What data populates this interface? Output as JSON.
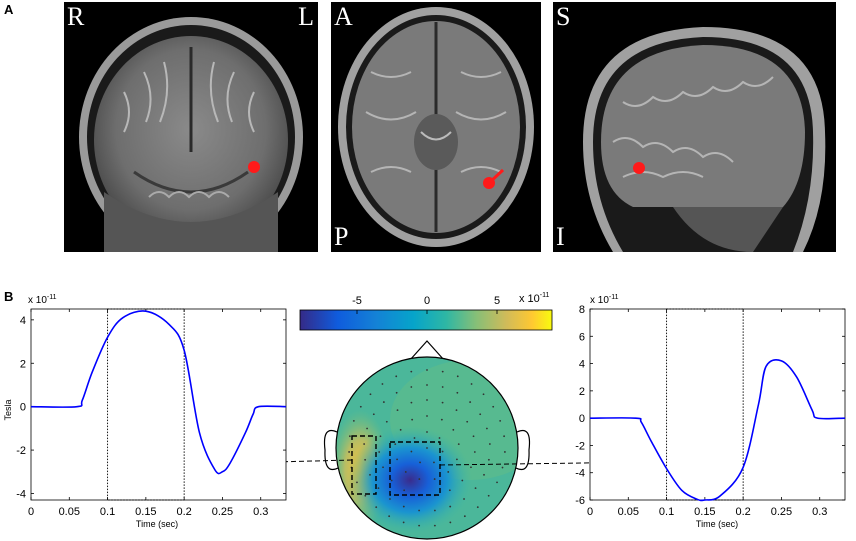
{
  "panel_a": {
    "label": "A",
    "views": [
      {
        "name": "coronal",
        "orient_top_left": "R",
        "orient_top_right": "L",
        "orient_bottom_left": ""
      },
      {
        "name": "axial",
        "orient_top_left": "A",
        "orient_top_right": "",
        "orient_bottom_left": "P"
      },
      {
        "name": "sagittal",
        "orient_top_left": "S",
        "orient_top_right": "",
        "orient_bottom_left": "I"
      }
    ],
    "marker_color": "#ff1a1a"
  },
  "panel_b": {
    "label": "B",
    "colorbar": {
      "ticks": [
        "-5",
        "0",
        "5"
      ],
      "exponent_base": "x 10",
      "exponent_power": "-11",
      "range": [
        -8,
        8
      ]
    }
  },
  "chart_data": [
    {
      "type": "line",
      "name": "left-waveform",
      "exponent_base": "x 10",
      "exponent_power": "-11",
      "xlabel": "Time (sec)",
      "ylabel": "Tesla",
      "xlim": [
        0,
        0.333
      ],
      "ylim": [
        -4.3,
        4.5
      ],
      "xticks": [
        "0",
        "0.05",
        "0.1",
        "0.15",
        "0.2",
        "0.25",
        "0.3"
      ],
      "yticks": [
        "4",
        "2",
        "0",
        "-2",
        "-4"
      ],
      "line_color": "#0000ff",
      "x": [
        0,
        0.06,
        0.067,
        0.08,
        0.1,
        0.12,
        0.15,
        0.18,
        0.2,
        0.22,
        0.24,
        0.25,
        0.26,
        0.28,
        0.29,
        0.297,
        0.333
      ],
      "y": [
        0,
        0,
        0.3,
        1.6,
        3.2,
        4.1,
        4.4,
        3.8,
        2.6,
        -1.2,
        -2.9,
        -3.0,
        -2.6,
        -1.2,
        -0.35,
        0,
        0
      ],
      "window": [
        0.1,
        0.2
      ]
    },
    {
      "type": "line",
      "name": "right-waveform",
      "exponent_base": "x 10",
      "exponent_power": "-11",
      "xlabel": "Time (sec)",
      "ylabel": "",
      "xlim": [
        0,
        0.333
      ],
      "ylim": [
        -6,
        8
      ],
      "xticks": [
        "0",
        "0.05",
        "0.1",
        "0.15",
        "0.2",
        "0.25",
        "0.3"
      ],
      "yticks": [
        "8",
        "6",
        "4",
        "2",
        "0",
        "-2",
        "-4",
        "-6"
      ],
      "line_color": "#0000ff",
      "x": [
        0,
        0.06,
        0.067,
        0.08,
        0.1,
        0.12,
        0.14,
        0.15,
        0.17,
        0.2,
        0.22,
        0.23,
        0.25,
        0.27,
        0.29,
        0.297,
        0.333
      ],
      "y": [
        0,
        0,
        -0.3,
        -1.7,
        -3.7,
        -5.3,
        -5.95,
        -6.0,
        -5.7,
        -3.6,
        1.0,
        3.8,
        4.2,
        3.0,
        0.6,
        0,
        0
      ],
      "window": [
        0.1,
        0.2
      ]
    }
  ]
}
